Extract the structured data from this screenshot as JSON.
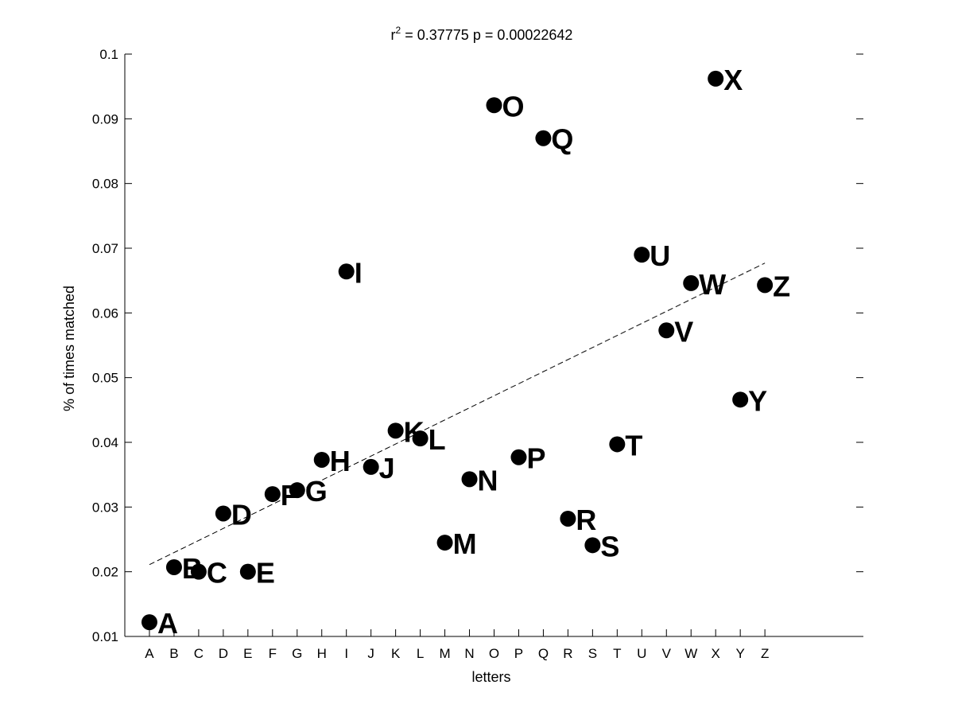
{
  "chart_data": {
    "type": "scatter",
    "title_prefix": "r",
    "title_sup": "2",
    "title_rest": " = 0.37775 p = 0.00022642",
    "xlabel": "letters",
    "ylabel": "% of times matched",
    "categories": [
      "A",
      "B",
      "C",
      "D",
      "E",
      "F",
      "G",
      "H",
      "I",
      "J",
      "K",
      "L",
      "M",
      "N",
      "O",
      "P",
      "Q",
      "R",
      "S",
      "T",
      "U",
      "V",
      "W",
      "X",
      "Y",
      "Z"
    ],
    "values": [
      0.0122,
      0.0207,
      0.02,
      0.029,
      0.02,
      0.032,
      0.0326,
      0.0373,
      0.0664,
      0.0362,
      0.0418,
      0.0406,
      0.0245,
      0.0343,
      0.0921,
      0.0377,
      0.087,
      0.0282,
      0.0241,
      0.0397,
      0.069,
      0.0573,
      0.0646,
      0.0962,
      0.0466,
      0.0643
    ],
    "ylim": [
      0.01,
      0.1
    ],
    "yticks": [
      "0.01",
      "0.02",
      "0.03",
      "0.04",
      "0.05",
      "0.06",
      "0.07",
      "0.08",
      "0.09",
      "0.1"
    ],
    "x_axis_span_categories": 30,
    "trendline": {
      "start_category": "A",
      "end_category": "Z",
      "y_start": 0.0211,
      "y_end": 0.0677,
      "style": "dashed"
    },
    "grid": false,
    "legend": "none",
    "marker_color": "#000000"
  }
}
